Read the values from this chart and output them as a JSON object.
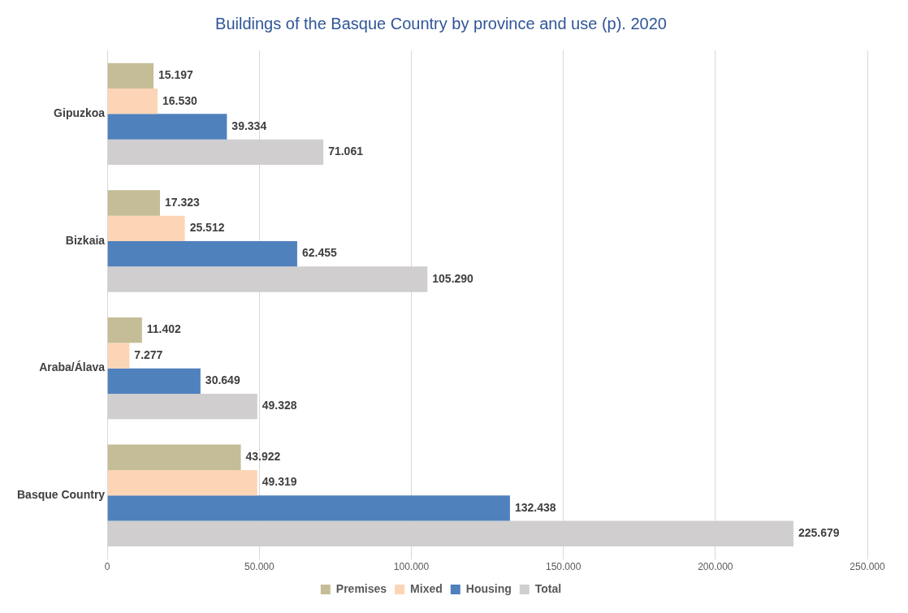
{
  "chart_data": {
    "type": "bar",
    "orientation": "horizontal",
    "title": "Buildings of the Basque Country by province and use (p). 2020",
    "categories": [
      "Gipuzkoa",
      "Bizkaia",
      "Araba/Álava",
      "Basque Country"
    ],
    "series": [
      {
        "name": "Premises",
        "color": "#c4bd97",
        "values": [
          15197,
          17323,
          11402,
          43922
        ],
        "value_labels": [
          "15.197",
          "17.323",
          "11.402",
          "43.922"
        ]
      },
      {
        "name": "Mixed",
        "color": "#fbd5b5",
        "values": [
          16530,
          25512,
          7277,
          49319
        ],
        "value_labels": [
          "16.530",
          "25.512",
          "7.277",
          "49.319"
        ]
      },
      {
        "name": "Housing",
        "color": "#4f81bd",
        "values": [
          39334,
          62455,
          30649,
          132438
        ],
        "value_labels": [
          "39.334",
          "62.455",
          "30.649",
          "132.438"
        ]
      },
      {
        "name": "Total",
        "color": "#d0cece",
        "values": [
          71061,
          105290,
          49328,
          225679
        ],
        "value_labels": [
          "71.061",
          "105.290",
          "49.328",
          "225.679"
        ]
      }
    ],
    "xlim": [
      0,
      250000
    ],
    "xticks": [
      0,
      {
        "value": 50000,
        "label": "50.000"
      },
      {
        "value": 100000,
        "label": "100.000"
      },
      {
        "value": 150000,
        "label": "150.000"
      },
      {
        "value": 200000,
        "label": "200.000"
      },
      {
        "value": 250000,
        "label": "250.000"
      }
    ],
    "grid": "x",
    "legend": "bottom"
  }
}
